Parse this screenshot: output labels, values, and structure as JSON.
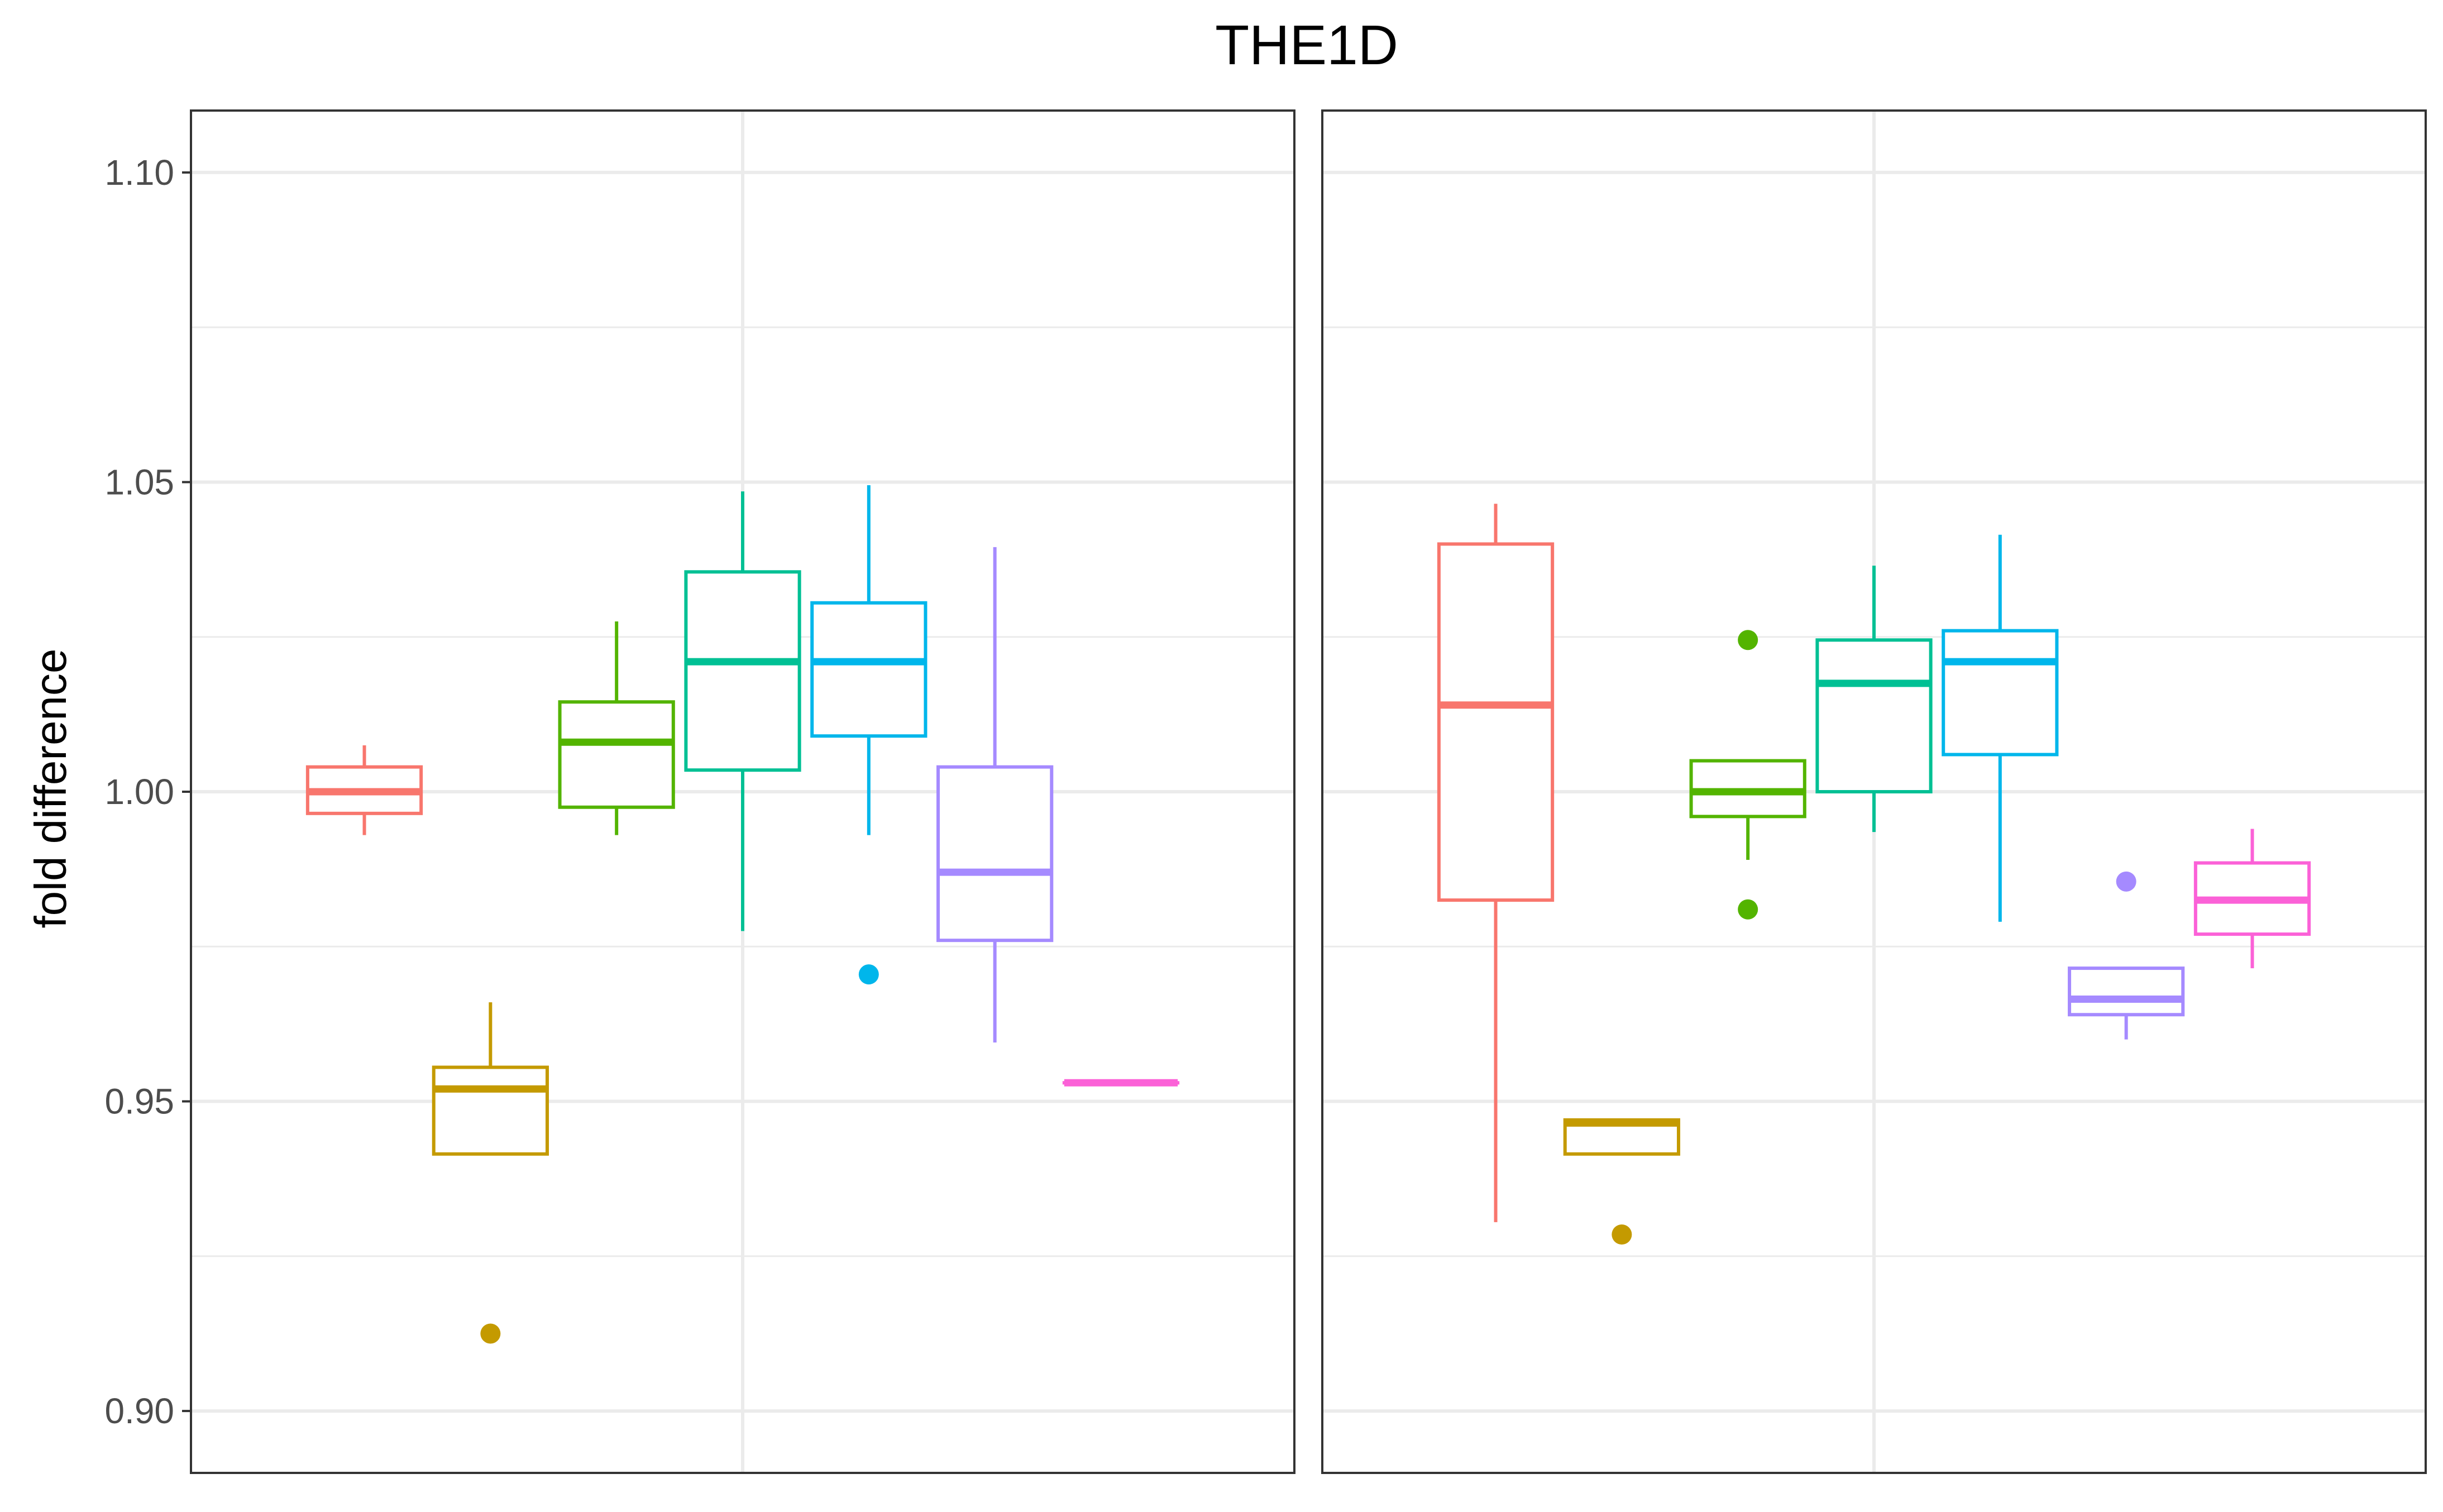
{
  "chart_data": {
    "type": "boxplot",
    "title": "THE1D",
    "xlabel": "",
    "ylabel": "fold difference",
    "ylim": [
      0.89,
      1.11
    ],
    "yticks": [
      "0.90",
      "0.95",
      "1.00",
      "1.05",
      "1.10"
    ],
    "grid": true,
    "facets": 2,
    "box_colors": [
      "#F8766D",
      "#C49A00",
      "#53B400",
      "#00C094",
      "#00B6EB",
      "#A58AFF",
      "#FB61D7"
    ],
    "panels": [
      {
        "boxes": [
          {
            "color": "#F8766D",
            "min": 0.993,
            "q1": 0.9965,
            "median": 1.0,
            "q3": 1.004,
            "max": 1.0075,
            "outliers": []
          },
          {
            "color": "#C49A00",
            "min": 0.9415,
            "q1": 0.9415,
            "median": 0.952,
            "q3": 0.9555,
            "max": 0.966,
            "outliers": [
              0.9125
            ]
          },
          {
            "color": "#53B400",
            "min": 0.993,
            "q1": 0.9975,
            "median": 1.008,
            "q3": 1.0145,
            "max": 1.0275,
            "outliers": []
          },
          {
            "color": "#00C094",
            "min": 0.9775,
            "q1": 1.0035,
            "median": 1.021,
            "q3": 1.0355,
            "max": 1.0485,
            "outliers": []
          },
          {
            "color": "#00B6EB",
            "min": 0.993,
            "q1": 1.009,
            "median": 1.021,
            "q3": 1.0305,
            "max": 1.0495,
            "outliers": [
              0.9705
            ]
          },
          {
            "color": "#A58AFF",
            "min": 0.9595,
            "q1": 0.976,
            "median": 0.987,
            "q3": 1.004,
            "max": 1.0395,
            "outliers": []
          },
          {
            "color": "#FB61D7",
            "min": 0.953,
            "q1": 0.953,
            "median": 0.953,
            "q3": 0.953,
            "max": 0.953,
            "outliers": []
          }
        ]
      },
      {
        "boxes": [
          {
            "color": "#F8766D",
            "min": 0.9305,
            "q1": 0.9825,
            "median": 1.014,
            "q3": 1.04,
            "max": 1.0465,
            "outliers": []
          },
          {
            "color": "#C49A00",
            "min": 0.9415,
            "q1": 0.9415,
            "median": 0.9465,
            "q3": 0.947,
            "max": 0.947,
            "outliers": [
              0.9285
            ]
          },
          {
            "color": "#53B400",
            "min": 0.989,
            "q1": 0.996,
            "median": 1.0,
            "q3": 1.005,
            "max": 1.005,
            "outliers": [
              1.0245,
              0.981
            ]
          },
          {
            "color": "#00C094",
            "min": 0.9935,
            "q1": 1.0,
            "median": 1.0175,
            "q3": 1.0245,
            "max": 1.0365,
            "outliers": []
          },
          {
            "color": "#00B6EB",
            "min": 0.979,
            "q1": 1.006,
            "median": 1.021,
            "q3": 1.026,
            "max": 1.0415,
            "outliers": []
          },
          {
            "color": "#A58AFF",
            "min": 0.96,
            "q1": 0.964,
            "median": 0.9665,
            "q3": 0.9715,
            "max": 0.9715,
            "outliers": [
              0.9855
            ]
          },
          {
            "color": "#FB61D7",
            "min": 0.9715,
            "q1": 0.977,
            "median": 0.9825,
            "q3": 0.9885,
            "max": 0.994,
            "outliers": []
          }
        ]
      }
    ]
  }
}
